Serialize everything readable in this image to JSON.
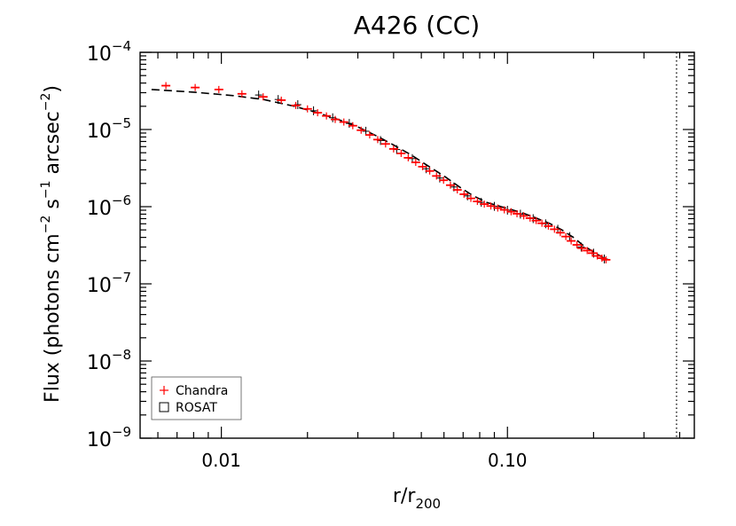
{
  "chart_data": {
    "type": "scatter",
    "title": "A426 (CC)",
    "xlabel": {
      "main": "r/r",
      "sub": "200"
    },
    "ylabel": {
      "p1": "Flux (photons cm",
      "e1": "−2",
      "p2": " s",
      "e2": "−1",
      "p3": " arcsec",
      "e3": "−2",
      "p4": ")"
    },
    "x_scale": "log",
    "y_scale": "log",
    "xlim": [
      0.0052,
      0.45
    ],
    "ylim": [
      1e-09,
      0.0001
    ],
    "x_ticks": [
      {
        "value": 0.01,
        "label": "0.01"
      },
      {
        "value": 0.1,
        "label": "0.10"
      }
    ],
    "y_ticks": [
      {
        "value": 1e-09,
        "base": "10",
        "exp": "−9"
      },
      {
        "value": 1e-08,
        "base": "10",
        "exp": "−8"
      },
      {
        "value": 1e-07,
        "base": "10",
        "exp": "−7"
      },
      {
        "value": 1e-06,
        "base": "10",
        "exp": "−6"
      },
      {
        "value": 1e-05,
        "base": "10",
        "exp": "−5"
      },
      {
        "value": 0.0001,
        "base": "10",
        "exp": "−4"
      }
    ],
    "vline": {
      "x": 0.39,
      "style": "dotted"
    },
    "legend": {
      "position": "bottom-left",
      "entries": [
        {
          "label": "Chandra",
          "marker": "plus",
          "color": "#ff0000"
        },
        {
          "label": "ROSAT",
          "marker": "square",
          "color": "#000000"
        }
      ]
    },
    "series": [
      {
        "name": "Chandra",
        "marker": "plus",
        "color": "#ff0000",
        "x": [
          0.0064,
          0.0081,
          0.0098,
          0.0118,
          0.014,
          0.0162,
          0.0182,
          0.02,
          0.0217,
          0.0233,
          0.025,
          0.0268,
          0.0288,
          0.0308,
          0.033,
          0.0352,
          0.0375,
          0.04,
          0.0425,
          0.045,
          0.0478,
          0.0505,
          0.0535,
          0.0565,
          0.0598,
          0.0632,
          0.0668,
          0.0705,
          0.0745,
          0.0785,
          0.083,
          0.0875,
          0.0925,
          0.0975,
          0.103,
          0.108,
          0.114,
          0.12,
          0.126,
          0.132,
          0.139,
          0.146,
          0.153,
          0.16,
          0.167,
          0.175,
          0.182,
          0.19,
          0.198,
          0.206,
          0.214,
          0.221
        ],
        "y": [
          3.7e-05,
          3.5e-05,
          3.3e-05,
          2.9e-05,
          2.65e-05,
          2.4e-05,
          2.05e-05,
          1.85e-05,
          1.65e-05,
          1.5e-05,
          1.35e-05,
          1.25e-05,
          1.12e-05,
          9.8e-06,
          8.5e-06,
          7.4e-06,
          6.5e-06,
          5.6e-06,
          4.9e-06,
          4.3e-06,
          3.75e-06,
          3.3e-06,
          2.9e-06,
          2.5e-06,
          2.2e-06,
          1.9e-06,
          1.65e-06,
          1.45e-06,
          1.28e-06,
          1.17e-06,
          1.08e-06,
          1.02e-06,
          9.6e-07,
          9.1e-07,
          8.6e-07,
          8.1e-07,
          7.6e-07,
          7.1e-07,
          6.6e-07,
          6.1e-07,
          5.6e-07,
          5.1e-07,
          4.6e-07,
          4.1e-07,
          3.6e-07,
          3.2e-07,
          2.9e-07,
          2.7e-07,
          2.5e-07,
          2.3e-07,
          2.15e-07,
          2.05e-07
        ]
      },
      {
        "name": "ROSAT",
        "marker": "square",
        "color": "#000000",
        "x": [
          0.0135,
          0.0158,
          0.0185,
          0.021,
          0.0245,
          0.028,
          0.032,
          0.036,
          0.041,
          0.0465,
          0.052,
          0.058,
          0.065,
          0.0725,
          0.081,
          0.09,
          0.1,
          0.111,
          0.123,
          0.136,
          0.15,
          0.165,
          0.181,
          0.2,
          0.218
        ],
        "y": [
          2.8e-05,
          2.45e-05,
          2.1e-05,
          1.75e-05,
          1.42e-05,
          1.2e-05,
          9.5e-06,
          7.2e-06,
          5.5e-06,
          4.2e-06,
          3.1e-06,
          2.35e-06,
          1.8e-06,
          1.38e-06,
          1.14e-06,
          1.01e-06,
          9e-07,
          8e-07,
          7e-07,
          6e-07,
          5.1e-07,
          4.1e-07,
          3e-07,
          2.5e-07,
          2.1e-07
        ]
      },
      {
        "name": "",
        "style": "dashed-line",
        "color": "#000000",
        "x": [
          0.0057,
          0.008,
          0.011,
          0.014,
          0.018,
          0.022,
          0.026,
          0.03,
          0.035,
          0.04,
          0.046,
          0.052,
          0.06,
          0.068,
          0.076,
          0.085,
          0.095,
          0.105,
          0.115,
          0.125,
          0.14,
          0.155,
          0.17,
          0.185,
          0.2,
          0.22
        ],
        "y": [
          3.3e-05,
          3.05e-05,
          2.75e-05,
          2.45e-05,
          2e-05,
          1.62e-05,
          1.32e-05,
          1.08e-05,
          8.2e-06,
          6.3e-06,
          4.7e-06,
          3.5e-06,
          2.5e-06,
          1.8e-06,
          1.38e-06,
          1.13e-06,
          1e-06,
          9e-07,
          8.1e-07,
          7.2e-07,
          6.1e-07,
          5e-07,
          4e-07,
          3.1e-07,
          2.6e-07,
          2.1e-07
        ]
      }
    ]
  }
}
